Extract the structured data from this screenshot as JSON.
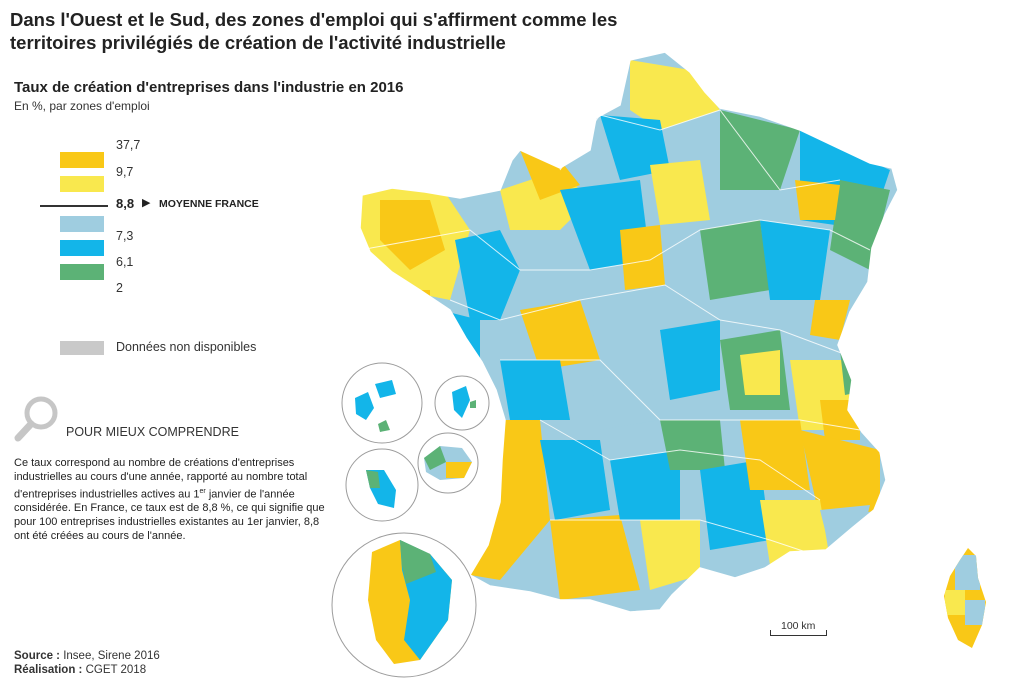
{
  "title": "Dans l'Ouest et le Sud, des zones d'emploi qui s'affirment comme les territoires privilégiés de création de l'activité industrielle",
  "map_title": "Taux de création d'entreprises dans l'industrie en 2016",
  "map_subtitle": "En %, par zones d'emploi",
  "legend": {
    "values": [
      "37,7",
      "9,7",
      "7,3",
      "6,1",
      "2"
    ],
    "mean_value": "8,8",
    "mean_label": "MOYENNE FRANCE",
    "na_label": "Données non disponibles",
    "colors": {
      "high": "#f9c817",
      "above": "#f9e84e",
      "below": "#9fcde0",
      "low": "#13b5e9",
      "lowest": "#5cb276",
      "na": "#c9c9c9"
    }
  },
  "help": {
    "title": "POUR MIEUX COMPRENDRE",
    "text_before_sup": "Ce taux correspond au nombre de créations d'entreprises industrielles au cours d'une année, rapporté au nombre total d'entreprises industrielles actives au 1",
    "sup": "er",
    "text_after_sup": " janvier de l'année considérée. En France, ce taux est de 8,8 %, ce qui signifie que pour 100 entreprises industrielles existantes au 1er janvier, 8,8 ont été créées au cours de l'année."
  },
  "source": {
    "label": "Source :",
    "value": " Insee, Sirene 2016"
  },
  "credit": {
    "label": "Réalisation :",
    "value": " CGET 2018"
  },
  "scale_label": "100 km",
  "icons": {
    "magnifier": "magnifier-icon"
  }
}
